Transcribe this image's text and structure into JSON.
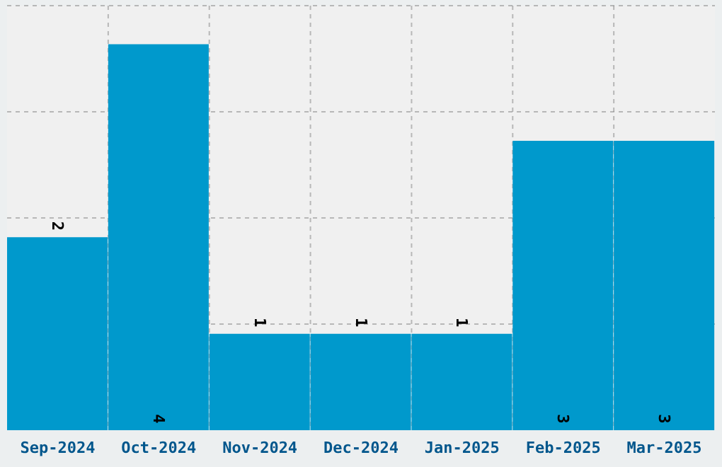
{
  "chart_data": {
    "type": "bar",
    "categories": [
      "Sep-2024",
      "Oct-2024",
      "Nov-2024",
      "Dec-2024",
      "Jan-2025",
      "Feb-2025",
      "Mar-2025"
    ],
    "values": [
      2,
      4,
      1,
      1,
      1,
      3,
      3
    ],
    "color": "#0099cc",
    "ylim": [
      0,
      4.4
    ],
    "yticks": [
      {
        "value": 1.1,
        "label": null
      },
      {
        "value": 2.2,
        "label": null
      },
      {
        "value": 3.3,
        "label": null
      },
      {
        "value": 4.4,
        "label": null
      }
    ],
    "tick_labels": "x",
    "grid": true,
    "data_labels": true
  }
}
